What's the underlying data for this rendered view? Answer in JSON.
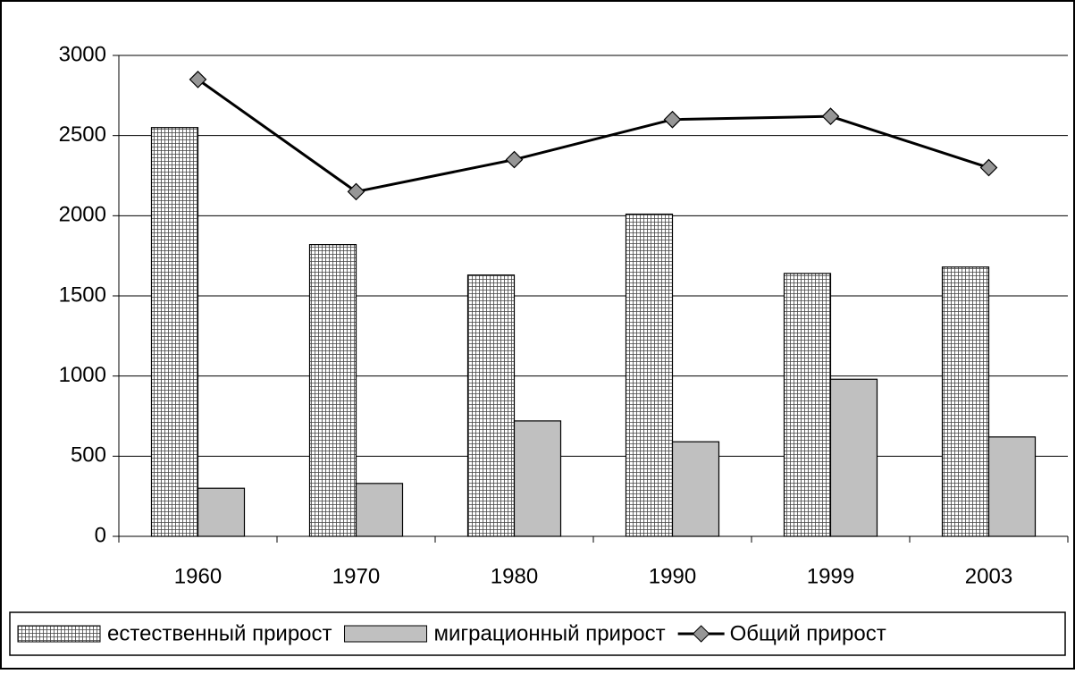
{
  "chart_data": {
    "type": "bar_line",
    "categories": [
      "1960",
      "1970",
      "1980",
      "1990",
      "1999",
      "2003"
    ],
    "series": [
      {
        "name": "естественный прирост",
        "type": "bar",
        "color": "#ffffff",
        "values": [
          2550,
          1820,
          1630,
          2010,
          1640,
          1680
        ]
      },
      {
        "name": "миграционный прирост",
        "type": "bar",
        "color": "#c0c0c0",
        "values": [
          300,
          330,
          720,
          590,
          980,
          620
        ]
      },
      {
        "name": "Общий прирост",
        "type": "line",
        "color": "#000000",
        "marker_color": "#969696",
        "values": [
          2850,
          2150,
          2350,
          2600,
          2620,
          2300
        ]
      }
    ],
    "ylim": [
      0,
      3000
    ],
    "yticks": [
      0,
      500,
      1000,
      1500,
      2000,
      2500,
      3000
    ],
    "grid": true,
    "legend": "bottom"
  }
}
